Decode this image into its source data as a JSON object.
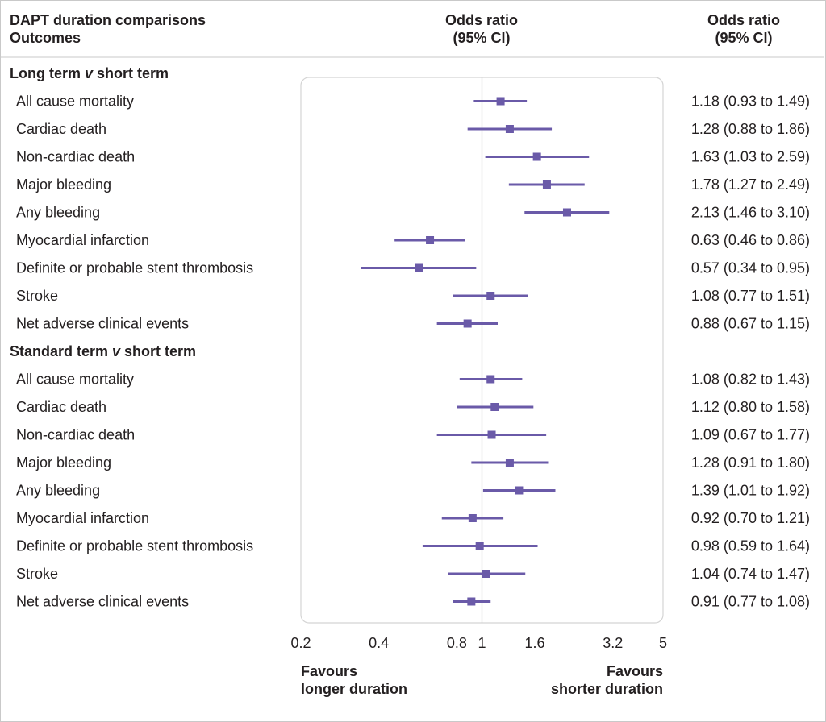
{
  "chart_data": {
    "type": "forest",
    "header": {
      "left_line1": "DAPT duration comparisons",
      "left_line2": "Outcomes",
      "mid_line1": "Odds ratio",
      "mid_line2": "(95% CI)",
      "right_line1": "Odds ratio",
      "right_line2": "(95% CI)"
    },
    "x_scale": "log",
    "xlim": [
      0.2,
      5
    ],
    "ticks": [
      0.2,
      0.4,
      0.8,
      1,
      1.6,
      3.2,
      5
    ],
    "tick_labels": [
      "0.2",
      "0.4",
      "0.8",
      "1",
      "1.6",
      "3.2",
      "5"
    ],
    "reference_line": 1,
    "color": "#6a5aa8",
    "favours_left": [
      "Favours",
      "longer duration"
    ],
    "favours_right": [
      "Favours",
      "shorter duration"
    ],
    "groups": [
      {
        "title": "Long term",
        "italic": "v",
        "title_end": "short term",
        "rows": [
          {
            "label": "All cause mortality",
            "or": 1.18,
            "lo": 0.93,
            "hi": 1.49,
            "text": "1.18 (0.93 to 1.49)"
          },
          {
            "label": "Cardiac death",
            "or": 1.28,
            "lo": 0.88,
            "hi": 1.86,
            "text": "1.28 (0.88 to 1.86)"
          },
          {
            "label": "Non-cardiac death",
            "or": 1.63,
            "lo": 1.03,
            "hi": 2.59,
            "text": "1.63 (1.03 to 2.59)"
          },
          {
            "label": "Major bleeding",
            "or": 1.78,
            "lo": 1.27,
            "hi": 2.49,
            "text": "1.78 (1.27 to 2.49)"
          },
          {
            "label": "Any bleeding",
            "or": 2.13,
            "lo": 1.46,
            "hi": 3.1,
            "text": "2.13 (1.46 to 3.10)"
          },
          {
            "label": "Myocardial infarction",
            "or": 0.63,
            "lo": 0.46,
            "hi": 0.86,
            "text": "0.63 (0.46 to 0.86)"
          },
          {
            "label": "Definite or probable stent thrombosis",
            "or": 0.57,
            "lo": 0.34,
            "hi": 0.95,
            "text": "0.57 (0.34 to 0.95)"
          },
          {
            "label": "Stroke",
            "or": 1.08,
            "lo": 0.77,
            "hi": 1.51,
            "text": "1.08 (0.77 to 1.51)"
          },
          {
            "label": "Net adverse clinical events",
            "or": 0.88,
            "lo": 0.67,
            "hi": 1.15,
            "text": "0.88 (0.67 to 1.15)"
          }
        ]
      },
      {
        "title": "Standard term",
        "italic": "v",
        "title_end": "short term",
        "rows": [
          {
            "label": "All cause mortality",
            "or": 1.08,
            "lo": 0.82,
            "hi": 1.43,
            "text": "1.08 (0.82 to 1.43)"
          },
          {
            "label": "Cardiac death",
            "or": 1.12,
            "lo": 0.8,
            "hi": 1.58,
            "text": "1.12 (0.80 to 1.58)"
          },
          {
            "label": "Non-cardiac death",
            "or": 1.09,
            "lo": 0.67,
            "hi": 1.77,
            "text": "1.09 (0.67 to 1.77)"
          },
          {
            "label": "Major bleeding",
            "or": 1.28,
            "lo": 0.91,
            "hi": 1.8,
            "text": "1.28 (0.91 to 1.80)"
          },
          {
            "label": "Any bleeding",
            "or": 1.39,
            "lo": 1.01,
            "hi": 1.92,
            "text": "1.39 (1.01 to 1.92)"
          },
          {
            "label": "Myocardial infarction",
            "or": 0.92,
            "lo": 0.7,
            "hi": 1.21,
            "text": "0.92 (0.70 to 1.21)"
          },
          {
            "label": "Definite or probable stent thrombosis",
            "or": 0.98,
            "lo": 0.59,
            "hi": 1.64,
            "text": "0.98 (0.59 to 1.64)"
          },
          {
            "label": "Stroke",
            "or": 1.04,
            "lo": 0.74,
            "hi": 1.47,
            "text": "1.04 (0.74 to 1.47)"
          },
          {
            "label": "Net adverse clinical events",
            "or": 0.91,
            "lo": 0.77,
            "hi": 1.08,
            "text": "0.91 (0.77 to 1.08)"
          }
        ]
      }
    ]
  }
}
